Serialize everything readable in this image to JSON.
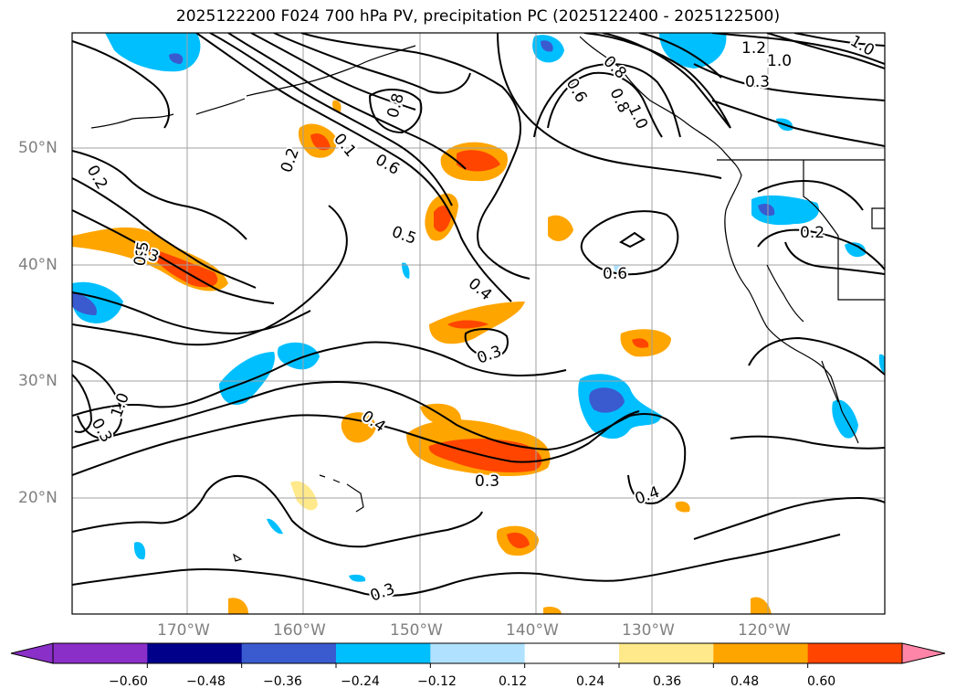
{
  "title": "2025122200 F024 700 hPa PV, precipitation PC (2025122400 - 2025122500)",
  "lat_labels": [
    "50°N",
    "40°N",
    "30°N",
    "20°N"
  ],
  "lon_labels": [
    "170°W",
    "160°W",
    "150°W",
    "140°W",
    "130°W",
    "120°W"
  ],
  "contour_labels": [
    "1.2",
    "1.0",
    "1.0",
    "0.8",
    "0.6",
    "0.8",
    "1.0",
    "0.2",
    "0.5",
    "0.4",
    "0.6",
    "0.3",
    "0.4",
    "0.3",
    "0.4",
    "0.3",
    "0.2",
    "0.2",
    "0.3",
    "0.5",
    "1.0",
    "0.3",
    "0.3",
    "0.1",
    "0.6",
    "0.8"
  ],
  "colorbar": {
    "ticks": [
      "−0.60",
      "−0.48",
      "−0.36",
      "−0.24",
      "−0.12",
      "0.12",
      "0.24",
      "0.36",
      "0.48",
      "0.60"
    ],
    "colors": [
      "#8b2fc9",
      "#00008b",
      "#3a5bd0",
      "#00bfff",
      "#b0e2ff",
      "#ffffff",
      "#ffe98a",
      "#ffa500",
      "#ff4500",
      "#b22222",
      "#ff85a8"
    ]
  },
  "colors": {
    "contour": "#000000",
    "grid": "#a0a0a0",
    "coast": "#000000"
  }
}
